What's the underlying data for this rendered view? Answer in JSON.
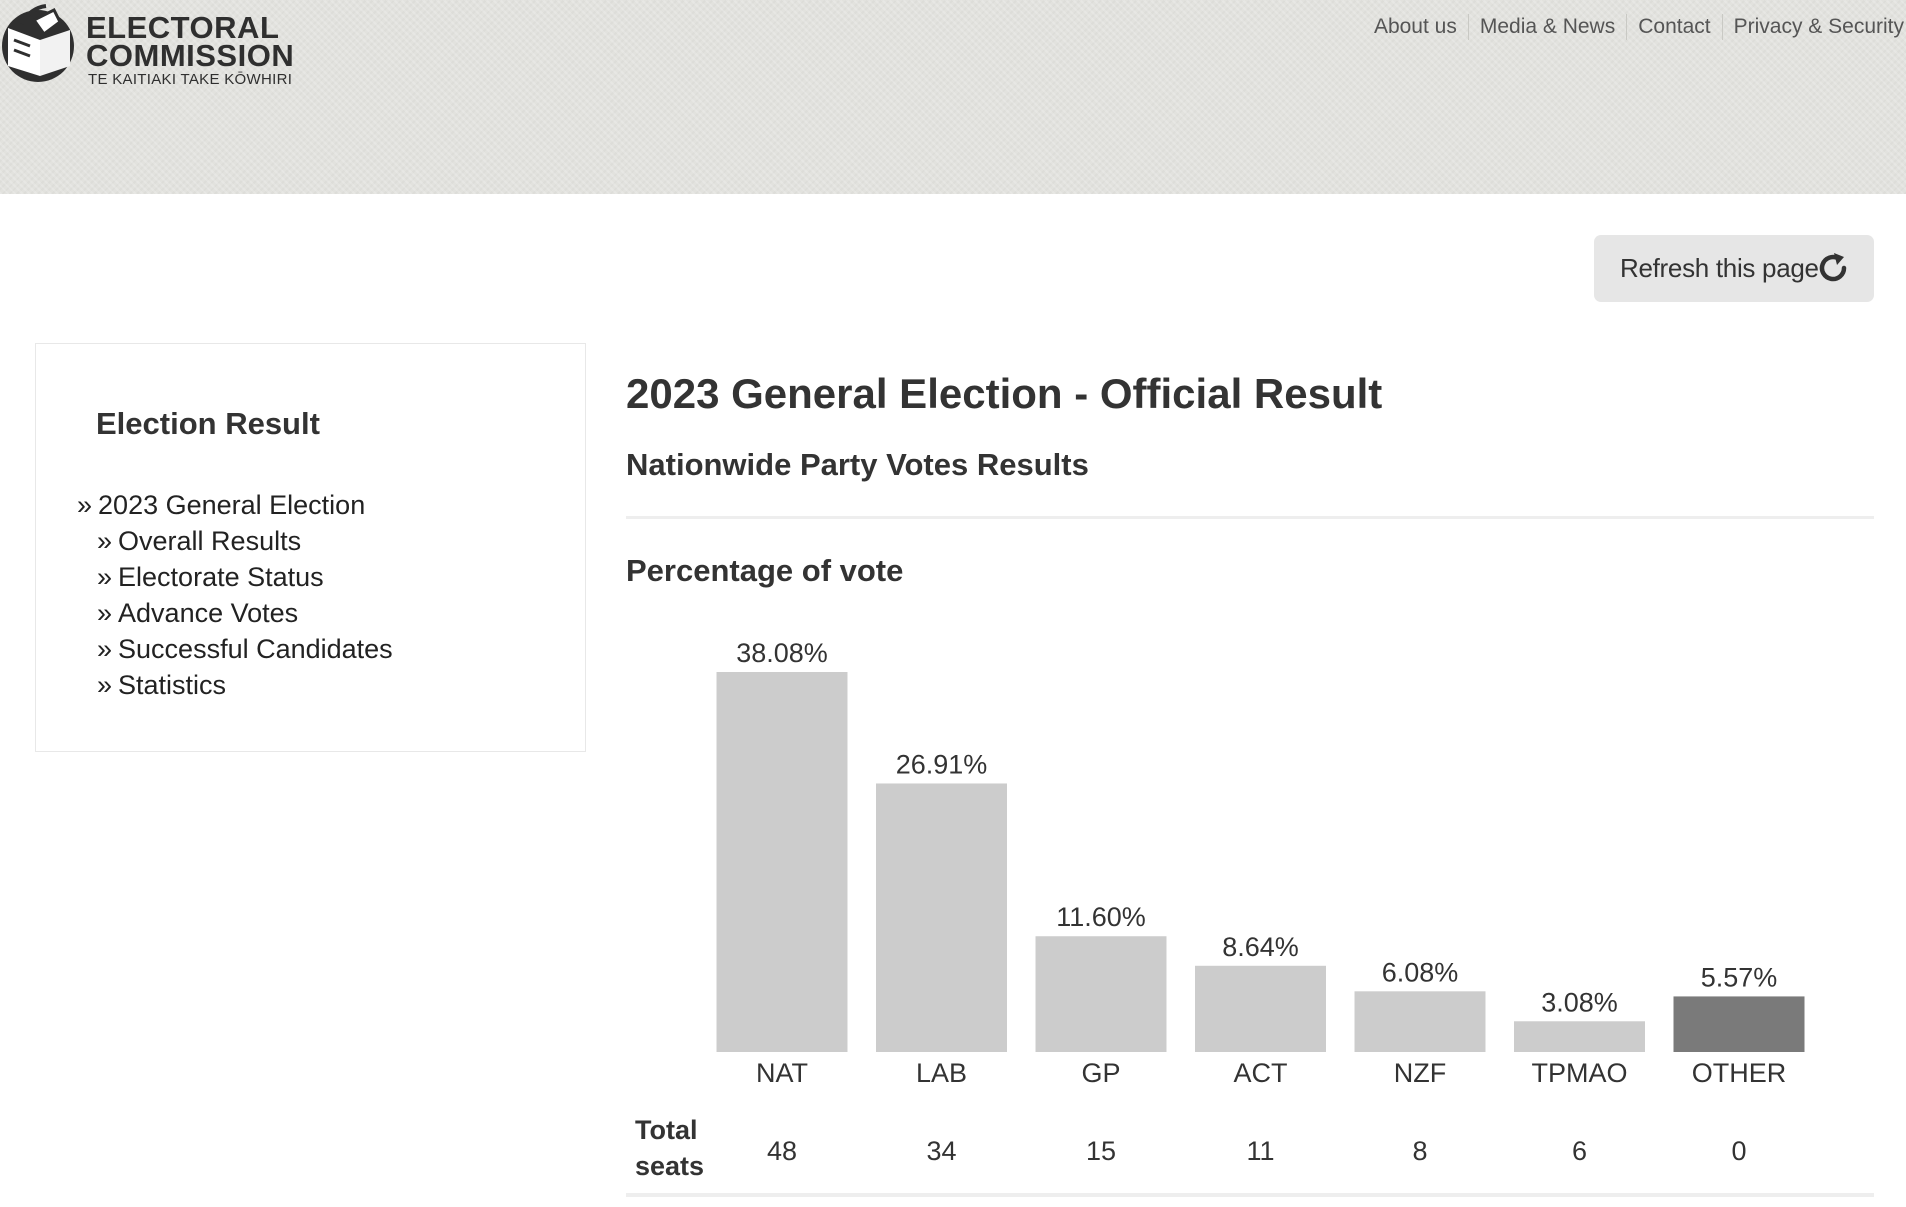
{
  "header": {
    "logo": {
      "line1": "ELECTORAL",
      "line2": "COMMISSION",
      "line3": "TE KAITIAKI TAKE KŌWHIRI"
    },
    "nav": [
      {
        "label": "About us"
      },
      {
        "label": "Media & News"
      },
      {
        "label": "Contact"
      },
      {
        "label": "Privacy & Security"
      }
    ]
  },
  "refresh": {
    "label": "Refresh this page",
    "icon": "refresh-icon"
  },
  "sidebar": {
    "title": "Election Result",
    "items": [
      {
        "label": "2023 General Election",
        "level": "top"
      },
      {
        "label": "Overall Results",
        "level": "sub"
      },
      {
        "label": "Electorate Status",
        "level": "sub"
      },
      {
        "label": "Advance Votes",
        "level": "sub"
      },
      {
        "label": "Successful Candidates",
        "level": "sub"
      },
      {
        "label": "Statistics",
        "level": "sub"
      }
    ],
    "chevron": "»"
  },
  "main": {
    "title": "2023 General Election - Official Result",
    "section": "Nationwide Party Votes Results",
    "chart_title": "Percentage of vote",
    "seats_label_line1": "Total",
    "seats_label_line2": "seats"
  },
  "colors": {
    "bar": "#cccccc",
    "bar_other": "#7a7a7a",
    "header_bg": "#e2e2de"
  },
  "chart_data": {
    "type": "bar",
    "title": "Percentage of vote",
    "categories": [
      "NAT",
      "LAB",
      "GP",
      "ACT",
      "NZF",
      "TPMAO",
      "OTHER"
    ],
    "values": [
      38.08,
      26.91,
      11.6,
      8.64,
      6.08,
      3.08,
      5.57
    ],
    "value_labels": [
      "38.08%",
      "26.91%",
      "11.60%",
      "8.64%",
      "6.08%",
      "3.08%",
      "5.57%"
    ],
    "ylim": [
      0,
      38.08
    ],
    "grid": false,
    "seats": [
      "48",
      "34",
      "15",
      "11",
      "8",
      "6",
      "0"
    ]
  }
}
